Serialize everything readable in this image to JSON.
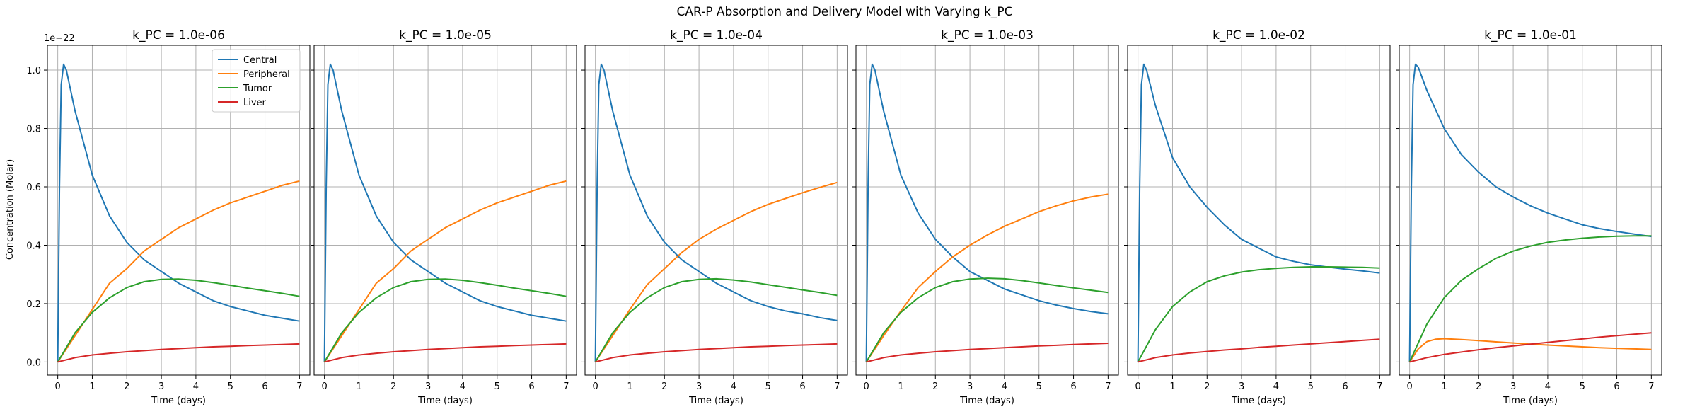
{
  "chart_data": {
    "type": "line",
    "title": "CAR-P Absorption and Delivery Model with Varying k_PC",
    "xlabel": "Time (days)",
    "ylabel": "Concentration (Molar)",
    "y_offset_label": "1e−22",
    "y_scale_note": "values in units of 1e-22 M",
    "xlim": [
      0,
      7
    ],
    "ylim": [
      0,
      1.05
    ],
    "xticks": [
      0,
      1,
      2,
      3,
      4,
      5,
      6,
      7
    ],
    "yticks": [
      0.0,
      0.2,
      0.4,
      0.6,
      0.8,
      1.0
    ],
    "ytick_labels": [
      "0.0",
      "0.2",
      "0.4",
      "0.6",
      "0.8",
      "1.0"
    ],
    "grid": true,
    "legend": {
      "location": "upper-right",
      "panel": 0
    },
    "colors": {
      "Central": "#1f77b4",
      "Peripheral": "#ff7f0e",
      "Tumor": "#2ca02c",
      "Liver": "#d62728"
    },
    "panels": [
      {
        "title": "k_PC = 1.0e-06",
        "series": [
          {
            "name": "Central",
            "x": [
              0,
              0.05,
              0.1,
              0.17,
              0.25,
              0.5,
              1,
              1.5,
              2,
              2.5,
              3,
              3.5,
              4,
              4.5,
              5,
              5.5,
              6,
              6.5,
              7
            ],
            "values": [
              0,
              0.6,
              0.95,
              1.02,
              1.0,
              0.86,
              0.64,
              0.5,
              0.41,
              0.35,
              0.31,
              0.27,
              0.24,
              0.21,
              0.19,
              0.175,
              0.16,
              0.15,
              0.14
            ]
          },
          {
            "name": "Peripheral",
            "x": [
              0,
              0.5,
              1,
              1.5,
              2,
              2.5,
              3,
              3.5,
              4,
              4.5,
              5,
              5.5,
              6,
              6.5,
              7
            ],
            "values": [
              0,
              0.09,
              0.18,
              0.27,
              0.32,
              0.38,
              0.42,
              0.46,
              0.49,
              0.52,
              0.545,
              0.565,
              0.585,
              0.605,
              0.62
            ]
          },
          {
            "name": "Tumor",
            "x": [
              0,
              0.5,
              1,
              1.5,
              2,
              2.5,
              3,
              3.5,
              4,
              4.5,
              5,
              5.5,
              6,
              6.5,
              7
            ],
            "values": [
              0,
              0.1,
              0.17,
              0.22,
              0.255,
              0.275,
              0.283,
              0.284,
              0.28,
              0.272,
              0.263,
              0.253,
              0.244,
              0.235,
              0.225
            ]
          },
          {
            "name": "Liver",
            "x": [
              0,
              0.5,
              1,
              1.5,
              2,
              2.5,
              3,
              3.5,
              4,
              4.5,
              5,
              5.5,
              6,
              6.5,
              7
            ],
            "values": [
              0,
              0.015,
              0.024,
              0.03,
              0.035,
              0.039,
              0.043,
              0.046,
              0.049,
              0.052,
              0.054,
              0.056,
              0.058,
              0.06,
              0.062
            ]
          }
        ]
      },
      {
        "title": "k_PC = 1.0e-05",
        "series": [
          {
            "name": "Central",
            "x": [
              0,
              0.05,
              0.1,
              0.17,
              0.25,
              0.5,
              1,
              1.5,
              2,
              2.5,
              3,
              3.5,
              4,
              4.5,
              5,
              5.5,
              6,
              6.5,
              7
            ],
            "values": [
              0,
              0.6,
              0.95,
              1.02,
              1.0,
              0.86,
              0.64,
              0.5,
              0.41,
              0.35,
              0.31,
              0.27,
              0.24,
              0.21,
              0.19,
              0.175,
              0.16,
              0.15,
              0.14
            ]
          },
          {
            "name": "Peripheral",
            "x": [
              0,
              0.5,
              1,
              1.5,
              2,
              2.5,
              3,
              3.5,
              4,
              4.5,
              5,
              5.5,
              6,
              6.5,
              7
            ],
            "values": [
              0,
              0.09,
              0.18,
              0.27,
              0.32,
              0.38,
              0.42,
              0.46,
              0.49,
              0.52,
              0.545,
              0.565,
              0.585,
              0.605,
              0.62
            ]
          },
          {
            "name": "Tumor",
            "x": [
              0,
              0.5,
              1,
              1.5,
              2,
              2.5,
              3,
              3.5,
              4,
              4.5,
              5,
              5.5,
              6,
              6.5,
              7
            ],
            "values": [
              0,
              0.1,
              0.17,
              0.22,
              0.255,
              0.275,
              0.283,
              0.284,
              0.28,
              0.272,
              0.263,
              0.253,
              0.244,
              0.235,
              0.225
            ]
          },
          {
            "name": "Liver",
            "x": [
              0,
              0.5,
              1,
              1.5,
              2,
              2.5,
              3,
              3.5,
              4,
              4.5,
              5,
              5.5,
              6,
              6.5,
              7
            ],
            "values": [
              0,
              0.015,
              0.024,
              0.03,
              0.035,
              0.039,
              0.043,
              0.046,
              0.049,
              0.052,
              0.054,
              0.056,
              0.058,
              0.06,
              0.062
            ]
          }
        ]
      },
      {
        "title": "k_PC = 1.0e-04",
        "series": [
          {
            "name": "Central",
            "x": [
              0,
              0.05,
              0.1,
              0.17,
              0.25,
              0.5,
              1,
              1.5,
              2,
              2.5,
              3,
              3.5,
              4,
              4.5,
              5,
              5.5,
              6,
              6.5,
              7
            ],
            "values": [
              0,
              0.6,
              0.95,
              1.02,
              1.0,
              0.86,
              0.64,
              0.5,
              0.41,
              0.35,
              0.31,
              0.27,
              0.24,
              0.21,
              0.19,
              0.175,
              0.165,
              0.152,
              0.142
            ]
          },
          {
            "name": "Peripheral",
            "x": [
              0,
              0.5,
              1,
              1.5,
              2,
              2.5,
              3,
              3.5,
              4,
              4.5,
              5,
              5.5,
              6,
              6.5,
              7
            ],
            "values": [
              0,
              0.09,
              0.18,
              0.265,
              0.32,
              0.375,
              0.42,
              0.455,
              0.485,
              0.515,
              0.54,
              0.56,
              0.58,
              0.598,
              0.615
            ]
          },
          {
            "name": "Tumor",
            "x": [
              0,
              0.5,
              1,
              1.5,
              2,
              2.5,
              3,
              3.5,
              4,
              4.5,
              5,
              5.5,
              6,
              6.5,
              7
            ],
            "values": [
              0,
              0.1,
              0.17,
              0.22,
              0.255,
              0.275,
              0.283,
              0.285,
              0.281,
              0.274,
              0.265,
              0.256,
              0.247,
              0.238,
              0.228
            ]
          },
          {
            "name": "Liver",
            "x": [
              0,
              0.5,
              1,
              1.5,
              2,
              2.5,
              3,
              3.5,
              4,
              4.5,
              5,
              5.5,
              6,
              6.5,
              7
            ],
            "values": [
              0,
              0.015,
              0.024,
              0.03,
              0.035,
              0.039,
              0.043,
              0.046,
              0.049,
              0.052,
              0.054,
              0.056,
              0.058,
              0.06,
              0.062
            ]
          }
        ]
      },
      {
        "title": "k_PC = 1.0e-03",
        "series": [
          {
            "name": "Central",
            "x": [
              0,
              0.05,
              0.1,
              0.17,
              0.25,
              0.5,
              1,
              1.5,
              2,
              2.5,
              3,
              3.5,
              4,
              4.5,
              5,
              5.5,
              6,
              6.5,
              7
            ],
            "values": [
              0,
              0.6,
              0.95,
              1.02,
              1.0,
              0.86,
              0.64,
              0.51,
              0.42,
              0.36,
              0.31,
              0.28,
              0.25,
              0.23,
              0.21,
              0.195,
              0.183,
              0.173,
              0.165
            ]
          },
          {
            "name": "Peripheral",
            "x": [
              0,
              0.5,
              1,
              1.5,
              2,
              2.5,
              3,
              3.5,
              4,
              4.5,
              5,
              5.5,
              6,
              6.5,
              7
            ],
            "values": [
              0,
              0.09,
              0.175,
              0.255,
              0.31,
              0.36,
              0.4,
              0.435,
              0.465,
              0.49,
              0.515,
              0.535,
              0.552,
              0.565,
              0.575
            ]
          },
          {
            "name": "Tumor",
            "x": [
              0,
              0.5,
              1,
              1.5,
              2,
              2.5,
              3,
              3.5,
              4,
              4.5,
              5,
              5.5,
              6,
              6.5,
              7
            ],
            "values": [
              0,
              0.1,
              0.17,
              0.22,
              0.255,
              0.275,
              0.284,
              0.287,
              0.285,
              0.279,
              0.271,
              0.262,
              0.254,
              0.246,
              0.238
            ]
          },
          {
            "name": "Liver",
            "x": [
              0,
              0.5,
              1,
              1.5,
              2,
              2.5,
              3,
              3.5,
              4,
              4.5,
              5,
              5.5,
              6,
              6.5,
              7
            ],
            "values": [
              0,
              0.015,
              0.024,
              0.03,
              0.035,
              0.039,
              0.043,
              0.046,
              0.049,
              0.052,
              0.055,
              0.057,
              0.06,
              0.062,
              0.064
            ]
          }
        ]
      },
      {
        "title": "k_PC = 1.0e-02",
        "series": [
          {
            "name": "Central",
            "x": [
              0,
              0.05,
              0.1,
              0.17,
              0.25,
              0.5,
              1,
              1.5,
              2,
              2.5,
              3,
              3.5,
              4,
              4.5,
              5,
              5.5,
              6,
              6.5,
              7
            ],
            "values": [
              0,
              0.6,
              0.95,
              1.02,
              1.0,
              0.88,
              0.7,
              0.6,
              0.53,
              0.47,
              0.42,
              0.39,
              0.36,
              0.345,
              0.333,
              0.325,
              0.318,
              0.312,
              0.305
            ]
          },
          {
            "name": "Peripheral",
            "x": [
              0,
              7
            ],
            "values": [
              0,
              0
            ]
          },
          {
            "name": "Tumor",
            "x": [
              0,
              0.5,
              1,
              1.5,
              2,
              2.5,
              3,
              3.5,
              4,
              4.5,
              5,
              5.5,
              6,
              6.5,
              7
            ],
            "values": [
              0,
              0.11,
              0.19,
              0.24,
              0.275,
              0.295,
              0.308,
              0.316,
              0.321,
              0.324,
              0.326,
              0.326,
              0.325,
              0.324,
              0.322
            ]
          },
          {
            "name": "Liver",
            "x": [
              0,
              0.5,
              1,
              1.5,
              2,
              2.5,
              3,
              3.5,
              4,
              4.5,
              5,
              5.5,
              6,
              6.5,
              7
            ],
            "values": [
              0,
              0.015,
              0.024,
              0.031,
              0.036,
              0.041,
              0.045,
              0.05,
              0.054,
              0.058,
              0.062,
              0.066,
              0.07,
              0.074,
              0.078
            ]
          }
        ]
      },
      {
        "title": "k_PC = 1.0e-01",
        "series": [
          {
            "name": "Central",
            "x": [
              0,
              0.05,
              0.1,
              0.17,
              0.25,
              0.5,
              1,
              1.5,
              2,
              2.5,
              3,
              3.5,
              4,
              4.5,
              5,
              5.5,
              6,
              6.5,
              7
            ],
            "values": [
              0,
              0.6,
              0.95,
              1.02,
              1.01,
              0.93,
              0.8,
              0.71,
              0.65,
              0.6,
              0.565,
              0.535,
              0.51,
              0.49,
              0.47,
              0.457,
              0.447,
              0.438,
              0.43
            ]
          },
          {
            "name": "Peripheral",
            "x": [
              0,
              0.25,
              0.5,
              0.75,
              1,
              1.5,
              2,
              2.5,
              3,
              3.5,
              4,
              4.5,
              5,
              5.5,
              6,
              6.5,
              7
            ],
            "values": [
              0,
              0.045,
              0.07,
              0.078,
              0.08,
              0.077,
              0.073,
              0.069,
              0.065,
              0.061,
              0.058,
              0.055,
              0.052,
              0.049,
              0.047,
              0.045,
              0.043
            ]
          },
          {
            "name": "Tumor",
            "x": [
              0,
              0.5,
              1,
              1.5,
              2,
              2.5,
              3,
              3.5,
              4,
              4.5,
              5,
              5.5,
              6,
              6.5,
              7
            ],
            "values": [
              0,
              0.13,
              0.22,
              0.28,
              0.32,
              0.355,
              0.38,
              0.397,
              0.41,
              0.418,
              0.424,
              0.428,
              0.431,
              0.432,
              0.432
            ]
          },
          {
            "name": "Liver",
            "x": [
              0,
              0.5,
              1,
              1.5,
              2,
              2.5,
              3,
              3.5,
              4,
              4.5,
              5,
              5.5,
              6,
              6.5,
              7
            ],
            "values": [
              0,
              0.015,
              0.026,
              0.034,
              0.042,
              0.049,
              0.055,
              0.061,
              0.067,
              0.073,
              0.079,
              0.085,
              0.09,
              0.095,
              0.1
            ]
          }
        ]
      }
    ]
  }
}
